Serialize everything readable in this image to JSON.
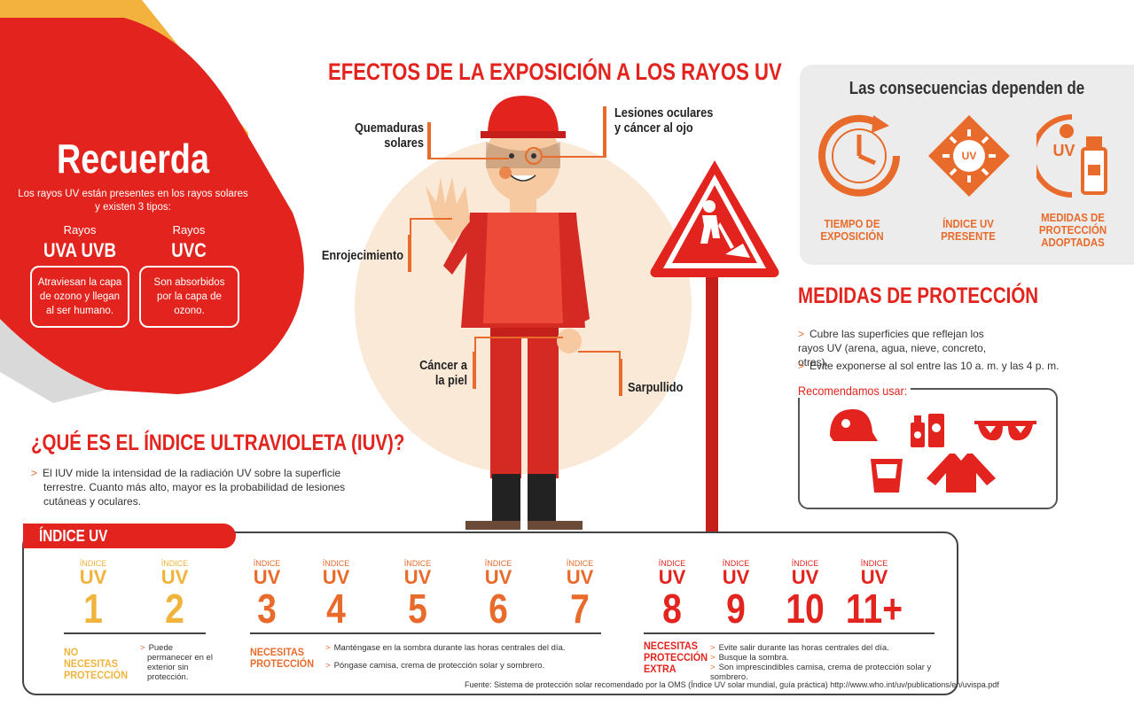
{
  "recuerda": {
    "title": "Recuerda",
    "intro": "Los rayos UV están presentes en los rayos solares y existen 3 tipos:",
    "group1": {
      "label": "Rayos",
      "types": "UVA  UVB",
      "desc": "Atraviesan la capa de ozono y llegan al ser humano."
    },
    "group2": {
      "label": "Rayos",
      "types": "UVC",
      "desc": "Son absorbidos por la capa de ozono."
    }
  },
  "effects": {
    "title": "EFECTOS DE LA EXPOSICIÓN A LOS RAYOS UV",
    "quemaduras": "Quemaduras solares",
    "lesiones": "Lesiones oculares y cáncer al ojo",
    "enrojecimiento": "Enrojecimiento",
    "cancer": "Cáncer a la piel",
    "sarpullido": "Sarpullido"
  },
  "consequences": {
    "title": "Las consecuencias dependen de",
    "items": [
      {
        "label": "TIEMPO DE EXPOSICIÓN",
        "icon": "clock-icon"
      },
      {
        "label": "ÍNDICE UV PRESENTE",
        "icon": "uv-sun-icon",
        "badge": "UV"
      },
      {
        "label": "MEDIDAS DE PROTECCIÓN ADOPTADAS",
        "icon": "uv-protection-icon",
        "badge": "UV"
      }
    ]
  },
  "medidas": {
    "title": "MEDIDAS DE PROTECCIÓN",
    "bullets": [
      "Cubre las superficies que reflejan los rayos UV (arena, agua, nieve, concreto, otras).",
      "Evite exponerse al sol entre las 10 a. m. y las 4 p. m."
    ],
    "recommend_title": "Recomendamos usar:"
  },
  "iuv": {
    "title": "¿QUÉ ES EL ÍNDICE ULTRAVIOLETA (IUV)?",
    "text": "El IUV mide la intensidad de la radiación UV sobre la superficie terrestre. Cuanto más alto, mayor es la probabilidad de lesiones cutáneas y oculares."
  },
  "uv_index": {
    "tab": "ÍNDICE UV",
    "small": "ÍNDICE",
    "word": "UV",
    "values": [
      "1",
      "2",
      "3",
      "4",
      "5",
      "6",
      "7",
      "8",
      "9",
      "10",
      "11+"
    ],
    "colors": {
      "low": "#f0b43c",
      "mid": "#e86b2c",
      "high": "#e3241e"
    },
    "cat1": {
      "label": "NO NECESITAS PROTECCIÓN",
      "desc": "Puede permanecer en el exterior sin protección."
    },
    "cat2": {
      "label": "NECESITAS PROTECCIÓN",
      "desc1": "Manténgase en la sombra durante las horas centrales del día.",
      "desc2": "Póngase camisa, crema de protección solar y sombrero."
    },
    "cat3": {
      "label": "NECESITAS PROTECCIÓN EXTRA",
      "desc1": "Evite salir durante las horas centrales del día.",
      "desc2": "Busque la sombra.",
      "desc3": "Son imprescindibles camisa, crema de protección solar y sombrero."
    }
  },
  "source": "Fuente: Sistema de protección solar recomendado por la OMS (Índice UV solar mundial, guía práctica) http://www.who.int/uv/publications/en/uvispa.pdf"
}
